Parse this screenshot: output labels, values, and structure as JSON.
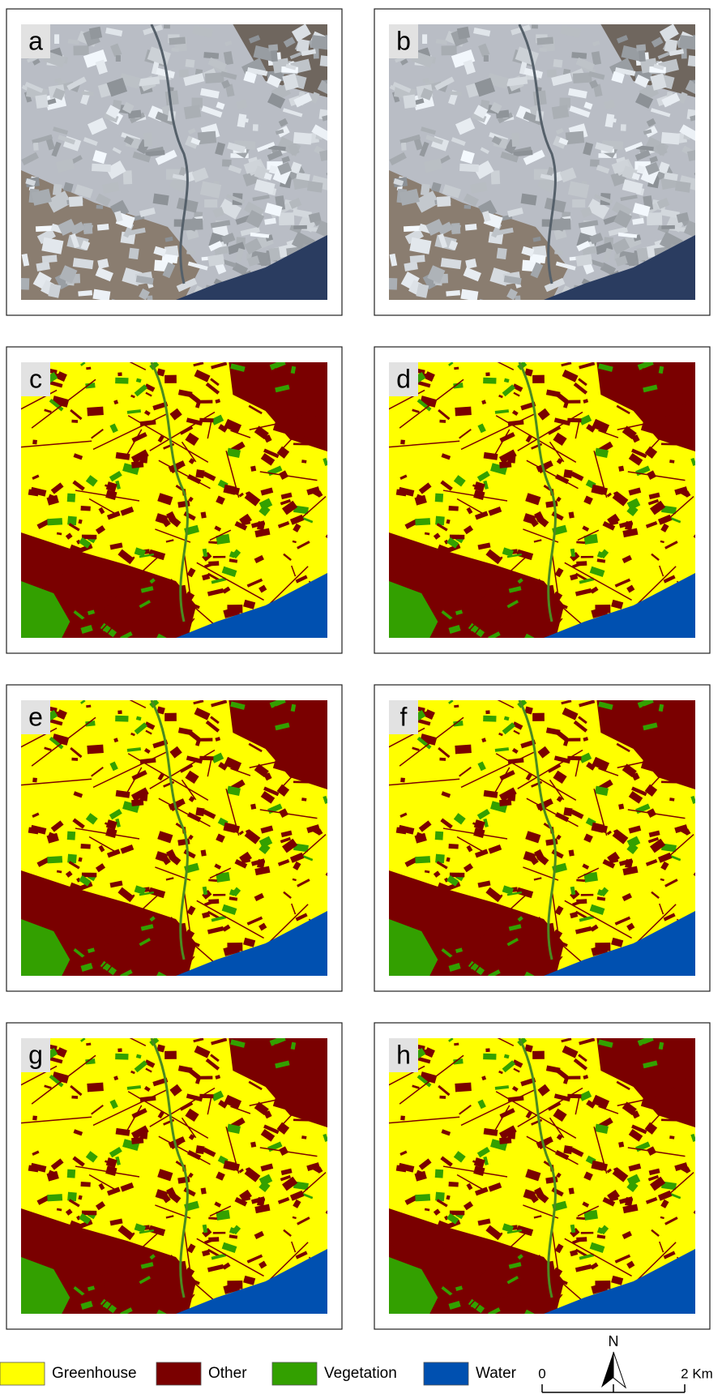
{
  "panel_labels": [
    "a",
    "b",
    "c",
    "d",
    "e",
    "f",
    "g",
    "h"
  ],
  "legend": [
    {
      "name": "Greenhouse",
      "color": "#ffff00"
    },
    {
      "name": "Other",
      "color": "#7a0000"
    },
    {
      "name": "Vegetation",
      "color": "#33a000"
    },
    {
      "name": "Water",
      "color": "#0050b0"
    }
  ],
  "north": "N",
  "scale_labels": [
    "0",
    "2 Km"
  ]
}
